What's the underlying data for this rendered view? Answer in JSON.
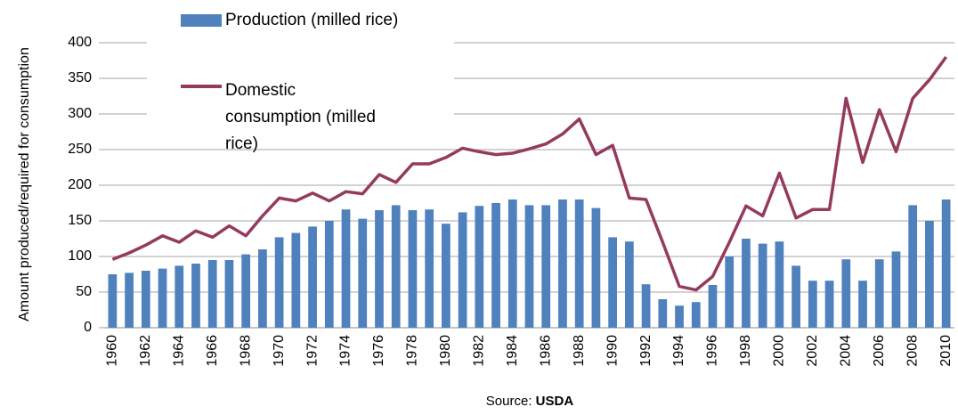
{
  "chart_data": {
    "type": "bar_line",
    "y_label": "Amount produced/required for consumption",
    "source_label": "Source:",
    "source": "USDA",
    "categories": [
      "1960",
      null,
      "1962",
      null,
      "1964",
      null,
      "1966",
      null,
      "1968",
      null,
      "1970",
      null,
      "1972",
      null,
      "1974",
      null,
      "1976",
      null,
      "1978",
      null,
      "1980",
      null,
      "1982",
      null,
      "1984",
      null,
      "1986",
      null,
      "1988",
      null,
      "1990",
      null,
      "1992",
      null,
      "1994",
      null,
      "1996",
      null,
      "1998",
      null,
      "2000",
      null,
      "2002",
      null,
      "2004",
      null,
      "2006",
      null,
      "2008",
      null,
      "2010"
    ],
    "series": [
      {
        "name": "Production (milled rice)",
        "type": "bar",
        "color": "#4f81bd",
        "values": [
          75,
          77,
          80,
          83,
          87,
          90,
          95,
          95,
          103,
          110,
          127,
          133,
          142,
          150,
          166,
          153,
          165,
          172,
          165,
          166,
          146,
          162,
          171,
          175,
          180,
          172,
          172,
          180,
          180,
          168,
          127,
          121,
          61,
          40,
          31,
          36,
          60,
          100,
          125,
          118,
          121,
          87,
          66,
          66,
          96,
          66,
          96,
          107,
          172,
          150,
          180
        ]
      },
      {
        "name": "Domestic consumption (milled rice)",
        "type": "line",
        "color": "#953a5f",
        "values": [
          96,
          105,
          116,
          129,
          120,
          136,
          127,
          143,
          129,
          157,
          182,
          178,
          189,
          178,
          191,
          188,
          215,
          204,
          230,
          230,
          239,
          252,
          247,
          243,
          245,
          251,
          258,
          272,
          293,
          243,
          256,
          182,
          180,
          120,
          58,
          53,
          72,
          120,
          171,
          157,
          217,
          154,
          166,
          166,
          322,
          232,
          306,
          247,
          322,
          348,
          380
        ]
      }
    ],
    "ylim": [
      0,
      400
    ],
    "yticks": [
      0,
      50,
      100,
      150,
      200,
      250,
      300,
      350,
      400
    ],
    "grid": true
  }
}
